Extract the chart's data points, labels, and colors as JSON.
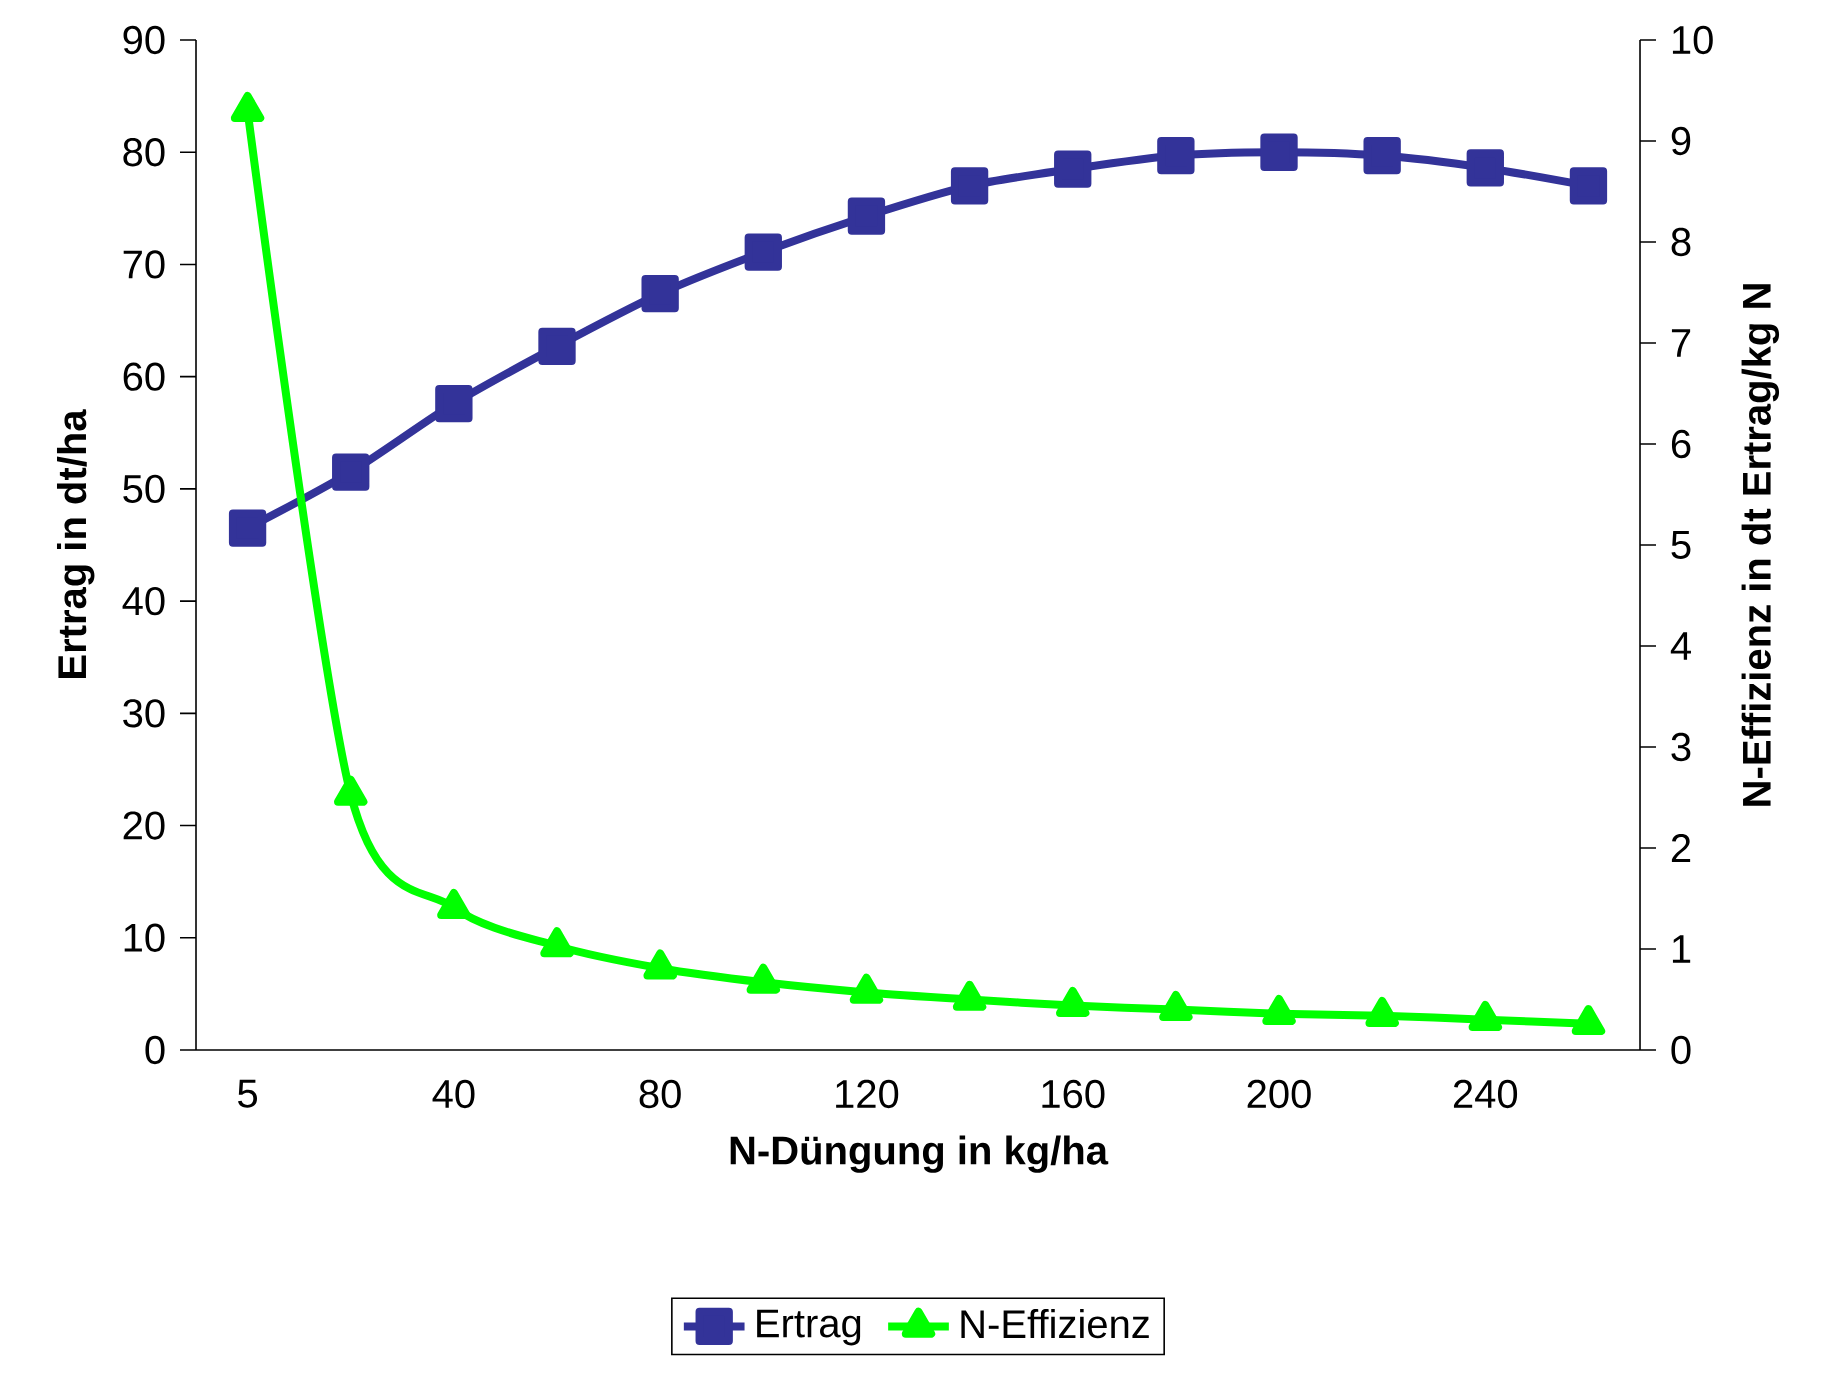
{
  "chart_data": {
    "type": "line",
    "xlabel": "N-Düngung in kg/ha",
    "ylabel": "Ertrag in dt/ha",
    "y2label": "N-Effizienz in dt Ertrag/kg N",
    "categories": [
      "5",
      null,
      "40",
      null,
      "80",
      null,
      "120",
      null,
      "160",
      null,
      "200",
      null,
      "240",
      null
    ],
    "series": [
      {
        "name": "Ertrag",
        "color": "#333399",
        "marker": "square",
        "values": [
          46.5,
          51.5,
          57.6,
          62.7,
          67.4,
          71.1,
          74.3,
          77.0,
          78.5,
          79.7,
          80.0,
          79.7,
          78.6,
          77.0
        ]
      },
      {
        "name": "N-Effizienz",
        "color": "#00ff00",
        "marker": "triangle",
        "axis": "y2",
        "values": [
          9.3,
          2.53,
          1.41,
          1.03,
          0.81,
          0.67,
          0.57,
          0.5,
          0.44,
          0.4,
          0.36,
          0.34,
          0.3,
          0.26
        ]
      }
    ],
    "ylim": [
      0,
      90
    ],
    "yticks": [
      0,
      10,
      20,
      30,
      40,
      50,
      60,
      70,
      80,
      90
    ],
    "y2lim": [
      0,
      10
    ],
    "y2ticks": [
      0,
      1,
      2,
      3,
      4,
      5,
      6,
      7,
      8,
      9,
      10
    ],
    "grid": false,
    "legend": "bottom",
    "line_style": "solid"
  }
}
